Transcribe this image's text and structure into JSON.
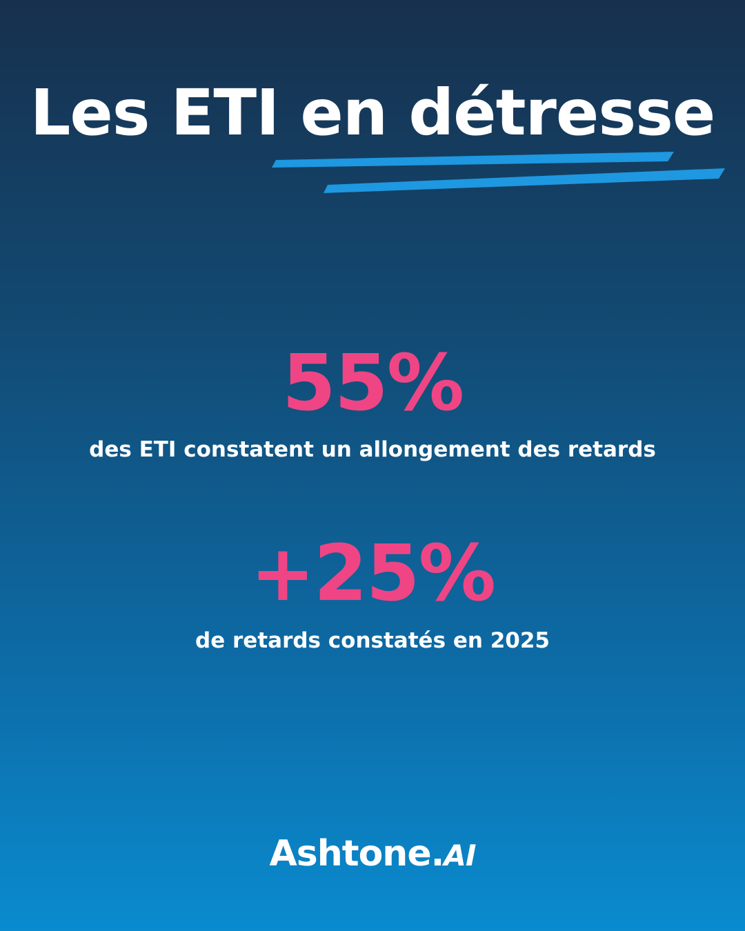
{
  "title": "Les ETI en détresse",
  "colors": {
    "background_top": "#17304d",
    "background_bottom": "#0a8bcf",
    "accent_pink": "#ef4584",
    "underline_blue": "#1e98e0",
    "text": "#ffffff"
  },
  "stats": [
    {
      "value": "55%",
      "description": "des ETI constatent un allongement des retards"
    },
    {
      "value": "+25%",
      "description": "de retards constatés en 2025"
    }
  ],
  "logo": {
    "name": "Ashtone",
    "dot": ".",
    "suffix": "AI"
  }
}
